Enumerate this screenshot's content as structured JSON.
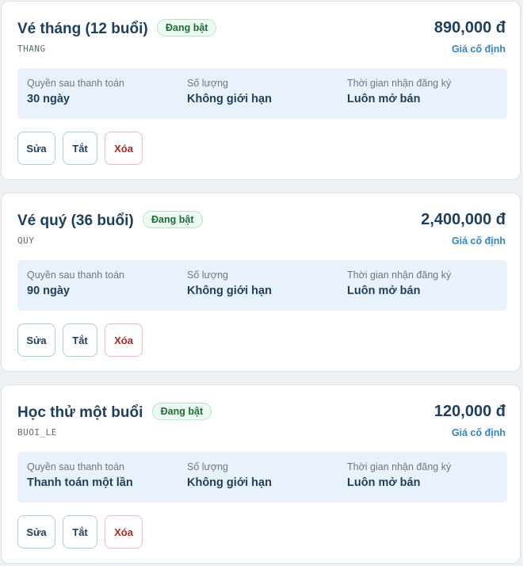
{
  "plans": [
    {
      "name": "Vé tháng (12 buổi)",
      "status": "Đang bật",
      "code": "THANG",
      "price": "890,000 đ",
      "price_type": "Giá cố định",
      "fields": [
        {
          "label": "Quyền sau thanh toán",
          "value": "30 ngày"
        },
        {
          "label": "Số lượng",
          "value": "Không giới hạn"
        },
        {
          "label": "Thời gian nhận đăng ký",
          "value": "Luôn mở bán"
        }
      ],
      "actions": {
        "edit": "Sửa",
        "toggle": "Tắt",
        "delete": "Xóa"
      }
    },
    {
      "name": "Vé quý (36 buổi)",
      "status": "Đang bật",
      "code": "QUY",
      "price": "2,400,000 đ",
      "price_type": "Giá cố định",
      "fields": [
        {
          "label": "Quyền sau thanh toán",
          "value": "90 ngày"
        },
        {
          "label": "Số lượng",
          "value": "Không giới hạn"
        },
        {
          "label": "Thời gian nhận đăng ký",
          "value": "Luôn mở bán"
        }
      ],
      "actions": {
        "edit": "Sửa",
        "toggle": "Tắt",
        "delete": "Xóa"
      }
    },
    {
      "name": "Học thử một buổi",
      "status": "Đang bật",
      "code": "BUOI_LE",
      "price": "120,000 đ",
      "price_type": "Giá cố định",
      "fields": [
        {
          "label": "Quyền sau thanh toán",
          "value": "Thanh toán một lần"
        },
        {
          "label": "Số lượng",
          "value": "Không giới hạn"
        },
        {
          "label": "Thời gian nhận đăng ký",
          "value": "Luôn mở bán"
        }
      ],
      "actions": {
        "edit": "Sửa",
        "toggle": "Tắt",
        "delete": "Xóa"
      }
    }
  ]
}
